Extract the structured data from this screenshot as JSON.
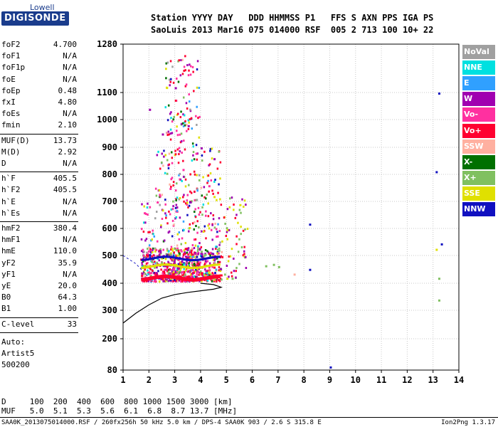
{
  "logo": {
    "top": "Lowell",
    "main": "DIGISONDE"
  },
  "header": {
    "line1": "Station YYYY DAY   DDD HHMMSS P1   FFS S AXN PPS IGA PS",
    "line2": "SaoLuis 2013 Mar16 075 014000 RSF  005 2 713 100 10+ 22"
  },
  "params": {
    "group1": [
      {
        "name": "foF2",
        "value": "4.700"
      },
      {
        "name": "foF1",
        "value": "N/A"
      },
      {
        "name": "foF1p",
        "value": "N/A"
      },
      {
        "name": "foE",
        "value": "N/A"
      },
      {
        "name": "foEp",
        "value": "0.48"
      },
      {
        "name": "fxI",
        "value": "4.80"
      },
      {
        "name": "foEs",
        "value": "N/A"
      },
      {
        "name": "fmin",
        "value": "2.10"
      }
    ],
    "group2": [
      {
        "name": "MUF(D)",
        "value": "13.73"
      },
      {
        "name": "M(D)",
        "value": "2.92"
      },
      {
        "name": "D",
        "value": "N/A"
      }
    ],
    "group3": [
      {
        "name": "h`F",
        "value": "405.5"
      },
      {
        "name": "h`F2",
        "value": "405.5"
      },
      {
        "name": "h`E",
        "value": "N/A"
      },
      {
        "name": "h`Es",
        "value": "N/A"
      }
    ],
    "group4": [
      {
        "name": "hmF2",
        "value": "380.4"
      },
      {
        "name": "hmF1",
        "value": "N/A"
      },
      {
        "name": "hmE",
        "value": "110.0"
      },
      {
        "name": "yF2",
        "value": "35.9"
      },
      {
        "name": "yF1",
        "value": "N/A"
      },
      {
        "name": "yE",
        "value": "20.0"
      },
      {
        "name": "B0",
        "value": "64.3"
      },
      {
        "name": "B1",
        "value": "1.00"
      }
    ],
    "group5": [
      {
        "name": "C-level",
        "value": "33"
      }
    ],
    "auto": [
      "Auto:",
      "Artist5",
      "500200"
    ]
  },
  "legend": [
    {
      "label": "NoVal",
      "color": "#a0a0a0"
    },
    {
      "label": "NNE",
      "color": "#00e0e0"
    },
    {
      "label": "E",
      "color": "#30a0ff"
    },
    {
      "label": "W",
      "color": "#a000b0"
    },
    {
      "label": "Vo-",
      "color": "#ff30a0"
    },
    {
      "label": "Vo+",
      "color": "#ff0030"
    },
    {
      "label": "SSW",
      "color": "#ffb0a0"
    },
    {
      "label": "X-",
      "color": "#007000"
    },
    {
      "label": "X+",
      "color": "#80c060"
    },
    {
      "label": "SSE",
      "color": "#e0e000"
    },
    {
      "label": "NNW",
      "color": "#1010c0"
    }
  ],
  "bottom": {
    "dline": "D     100  200  400  600  800 1000 1500 3000 [km]",
    "mufline": "MUF   5.0  5.1  5.3  5.6  6.1  6.8  8.7 13.7 [MHz]"
  },
  "footer": {
    "left": "SAA0K_2013075014000.RSF / 260fx256h 50 kHz 5.0 km / DPS-4 SAA0K 903 / 2.6 S 315.8 E",
    "right": "Ion2Png 1.3.17"
  },
  "chart_data": {
    "type": "scatter",
    "xlabel": "",
    "ylabel": "",
    "xlim": [
      1,
      14
    ],
    "ylim": [
      80,
      1280
    ],
    "x_ticks": [
      1,
      2,
      3,
      4,
      5,
      6,
      7,
      8,
      9,
      10,
      11,
      12,
      13,
      14
    ],
    "y_ticks": [
      80,
      200,
      300,
      400,
      500,
      600,
      700,
      800,
      900,
      1000,
      1100,
      1280
    ],
    "y_scale": "nonlinear (ionogram virtual height)",
    "grid": true,
    "profile_curve": [
      [
        1.0,
        255
      ],
      [
        1.5,
        290
      ],
      [
        2.0,
        320
      ],
      [
        2.5,
        345
      ],
      [
        3.0,
        358
      ],
      [
        3.5,
        366
      ],
      [
        4.0,
        372
      ],
      [
        4.5,
        378
      ],
      [
        4.8,
        385
      ],
      [
        4.5,
        395
      ],
      [
        4.0,
        400
      ]
    ],
    "traces": [
      {
        "name": "Vo+",
        "points": [
          [
            1.7,
            430
          ],
          [
            2.0,
            420
          ],
          [
            2.5,
            418
          ],
          [
            3.0,
            422
          ],
          [
            3.5,
            428
          ],
          [
            4.0,
            440
          ],
          [
            4.5,
            460
          ],
          [
            4.7,
            480
          ]
        ]
      },
      {
        "name": "NNW",
        "points": [
          [
            2.0,
            505
          ],
          [
            2.5,
            498
          ],
          [
            3.0,
            495
          ],
          [
            4.0,
            500
          ],
          [
            8.2,
            618
          ],
          [
            8.2,
            452
          ],
          [
            9.0,
            94
          ],
          [
            13.2,
            1100
          ],
          [
            13.3,
            545
          ],
          [
            13.1,
            812
          ]
        ]
      },
      {
        "name": "SSE",
        "points": [
          [
            3.0,
            470
          ],
          [
            4.0,
            460
          ],
          [
            5.0,
            420
          ],
          [
            5.5,
            690
          ],
          [
            4.5,
            720
          ],
          [
            13.1,
            525
          ]
        ]
      },
      {
        "name": "X+",
        "points": [
          [
            5.2,
            420
          ],
          [
            6.5,
            465
          ],
          [
            6.8,
            470
          ],
          [
            7.0,
            462
          ],
          [
            13.2,
            420
          ],
          [
            13.2,
            340
          ]
        ]
      },
      {
        "name": "W",
        "points": [
          [
            2.0,
            1040
          ],
          [
            2.5,
            950
          ],
          [
            3.0,
            1120
          ],
          [
            3.5,
            980
          ],
          [
            4.0,
            900
          ],
          [
            4.5,
            860
          ]
        ]
      },
      {
        "name": "Vo-",
        "points": [
          [
            1.8,
            660
          ],
          [
            2.3,
            700
          ],
          [
            2.8,
            750
          ],
          [
            3.3,
            820
          ],
          [
            3.8,
            880
          ],
          [
            4.3,
            760
          ]
        ]
      },
      {
        "name": "SSW",
        "points": [
          [
            7.6,
            435
          ]
        ]
      }
    ]
  }
}
